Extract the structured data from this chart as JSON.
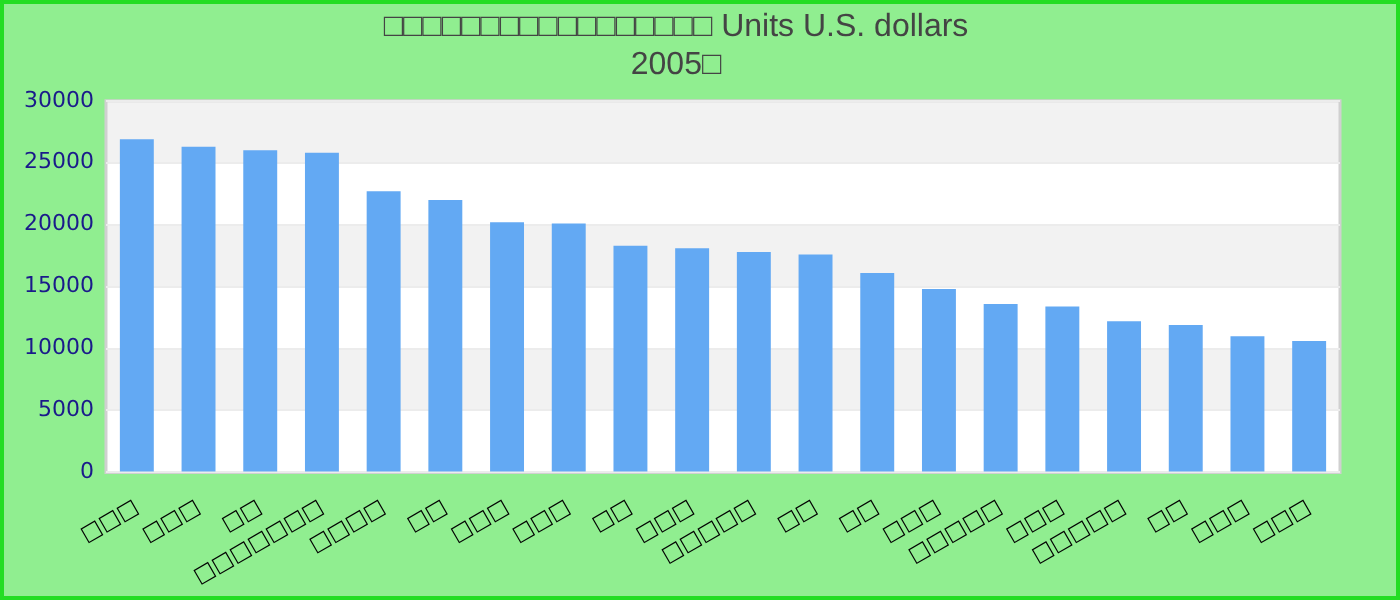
{
  "chart_data": {
    "type": "bar",
    "title": "□□□□□□□□□□□□□□□□□ Units U.S. dollars\n2005□",
    "categories": [
      "□□□",
      "□□□",
      "□□",
      "□□□□□□□",
      "□□□□",
      "□□",
      "□□□",
      "□□□",
      "□□",
      "□□□",
      "□□□□□",
      "□□",
      "□□",
      "□□□",
      "□□□□□",
      "□□□",
      "□□□□□",
      "□□",
      "□□□",
      "□□□"
    ],
    "values": [
      26900,
      26300,
      26000,
      25800,
      22700,
      22000,
      20200,
      20100,
      18300,
      18100,
      17800,
      17600,
      16100,
      14800,
      13600,
      13400,
      12200,
      11900,
      11000,
      10600
    ],
    "color": "#63a9f3",
    "ylim": [
      0,
      30000
    ],
    "yticks": [
      0,
      5000,
      10000,
      15000,
      20000,
      25000,
      30000
    ],
    "grid": "y"
  }
}
